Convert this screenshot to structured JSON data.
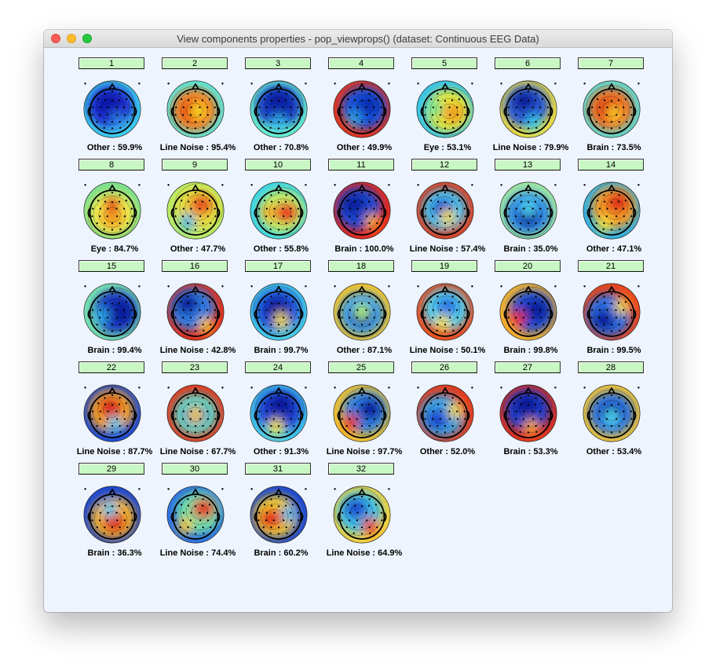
{
  "window": {
    "title": "View components properties - pop_viewprops() (dataset: Continuous EEG Data)"
  },
  "components": [
    {
      "number": "1",
      "label": "Other : 59.9%",
      "colors": [
        "#1e2bcf",
        "#0a17a8",
        "#2d7de8",
        "#3fd0f0"
      ]
    },
    {
      "number": "2",
      "label": "Line Noise : 95.4%",
      "colors": [
        "#f57e20",
        "#e02818",
        "#f5d524",
        "#55e8e0"
      ]
    },
    {
      "number": "3",
      "label": "Other : 70.8%",
      "colors": [
        "#1239c5",
        "#0a1b9e",
        "#35b5e8",
        "#6af2d0"
      ]
    },
    {
      "number": "4",
      "label": "Other : 49.9%",
      "colors": [
        "#1452e0",
        "#0a2bb0",
        "#2d9ee8",
        "#e8341d"
      ]
    },
    {
      "number": "5",
      "label": "Eye : 53.1%",
      "colors": [
        "#e3e83a",
        "#f0a024",
        "#73eb92",
        "#35c2e8"
      ]
    },
    {
      "number": "6",
      "label": "Line Noise : 79.9%",
      "colors": [
        "#2a5ad8",
        "#0a1f9a",
        "#36c6ea",
        "#f0e040"
      ]
    },
    {
      "number": "7",
      "label": "Brain : 73.5%",
      "colors": [
        "#f07022",
        "#d62617",
        "#f6c42c",
        "#58dcd8"
      ]
    },
    {
      "number": "8",
      "label": "Eye : 84.7%",
      "colors": [
        "#f3e94a",
        "#f0a024",
        "#e03318",
        "#7be08e"
      ]
    },
    {
      "number": "9",
      "label": "Other : 47.7%",
      "colors": [
        "#e8da3c",
        "#e8501c",
        "#4ab6e6",
        "#b5ec68"
      ]
    },
    {
      "number": "10",
      "label": "Other : 55.8%",
      "colors": [
        "#c6ec60",
        "#e8391b",
        "#f4b32a",
        "#3ad4e6"
      ]
    },
    {
      "number": "11",
      "label": "Brain : 100.0%",
      "colors": [
        "#1a4ad6",
        "#0b1a9c",
        "#f0a424",
        "#e8291a"
      ]
    },
    {
      "number": "12",
      "label": "Line Noise : 57.4%",
      "colors": [
        "#48c6ee",
        "#1a48d0",
        "#f0d83c",
        "#e03a1c"
      ]
    },
    {
      "number": "13",
      "label": "Brain : 35.0%",
      "colors": [
        "#2e8ae8",
        "#0a1e9e",
        "#4ed2ea",
        "#a0e6a0"
      ]
    },
    {
      "number": "14",
      "label": "Other : 47.1%",
      "colors": [
        "#f49b28",
        "#e02a1b",
        "#f0df40",
        "#2fb0e6"
      ]
    },
    {
      "number": "15",
      "label": "Brain : 99.4%",
      "colors": [
        "#1234c0",
        "#0b1a9a",
        "#2ea4e8",
        "#7ae3b0"
      ]
    },
    {
      "number": "16",
      "label": "Line Noise : 42.8%",
      "colors": [
        "#2e7ee6",
        "#0a1c9c",
        "#f2c232",
        "#e0301c"
      ]
    },
    {
      "number": "17",
      "label": "Brain : 99.7%",
      "colors": [
        "#1f4cd8",
        "#0a189a",
        "#f0d83c",
        "#46cfe8"
      ]
    },
    {
      "number": "18",
      "label": "Other : 87.1%",
      "colors": [
        "#3a9ee8",
        "#0b1d9e",
        "#a8ec74",
        "#f4c42c"
      ]
    },
    {
      "number": "19",
      "label": "Line Noise : 50.1%",
      "colors": [
        "#52d2ee",
        "#2a78e4",
        "#f0df44",
        "#e84a1d"
      ]
    },
    {
      "number": "20",
      "label": "Brain : 99.8%",
      "colors": [
        "#1f49d4",
        "#0b1a98",
        "#e6301a",
        "#f6b52a"
      ]
    },
    {
      "number": "21",
      "label": "Brain : 99.5%",
      "colors": [
        "#2a70e6",
        "#0a1c9c",
        "#f0d43a",
        "#e8461b"
      ]
    },
    {
      "number": "22",
      "label": "Line Noise : 87.7%",
      "colors": [
        "#f5a228",
        "#d6241a",
        "#5ac8e8",
        "#1a48d2"
      ]
    },
    {
      "number": "23",
      "label": "Line Noise : 67.7%",
      "colors": [
        "#62d6c4",
        "#1a48d2",
        "#f2c830",
        "#e0341a"
      ]
    },
    {
      "number": "24",
      "label": "Other : 91.3%",
      "colors": [
        "#1c3ed0",
        "#0a159a",
        "#f0e040",
        "#44c8ea"
      ]
    },
    {
      "number": "25",
      "label": "Line Noise : 97.7%",
      "colors": [
        "#2e80e6",
        "#0b1c9c",
        "#e03018",
        "#f2c22c"
      ]
    },
    {
      "number": "26",
      "label": "Other : 52.0%",
      "colors": [
        "#3aa6e8",
        "#1a46d0",
        "#f0d838",
        "#e03a1c"
      ]
    },
    {
      "number": "27",
      "label": "Brain : 53.3%",
      "colors": [
        "#1a3ecc",
        "#0a1896",
        "#f2a028",
        "#e0301a"
      ]
    },
    {
      "number": "28",
      "label": "Other : 53.4%",
      "colors": [
        "#2b72e2",
        "#0a1b9a",
        "#4dd0e8",
        "#f4c430"
      ]
    },
    {
      "number": "29",
      "label": "Brain : 36.3%",
      "colors": [
        "#f4b42a",
        "#e0321b",
        "#48c6e8",
        "#1a46d0"
      ]
    },
    {
      "number": "30",
      "label": "Line Noise : 74.4%",
      "colors": [
        "#6ee0a8",
        "#e03818",
        "#f4c82e",
        "#2a6ee2"
      ]
    },
    {
      "number": "31",
      "label": "Brain : 60.2%",
      "colors": [
        "#f0c830",
        "#e02e1a",
        "#3cb6ea",
        "#1a46d0"
      ]
    },
    {
      "number": "32",
      "label": "Line Noise : 64.9%",
      "colors": [
        "#3cc0ea",
        "#1a46d0",
        "#e83a1c",
        "#f4d23a"
      ]
    }
  ]
}
